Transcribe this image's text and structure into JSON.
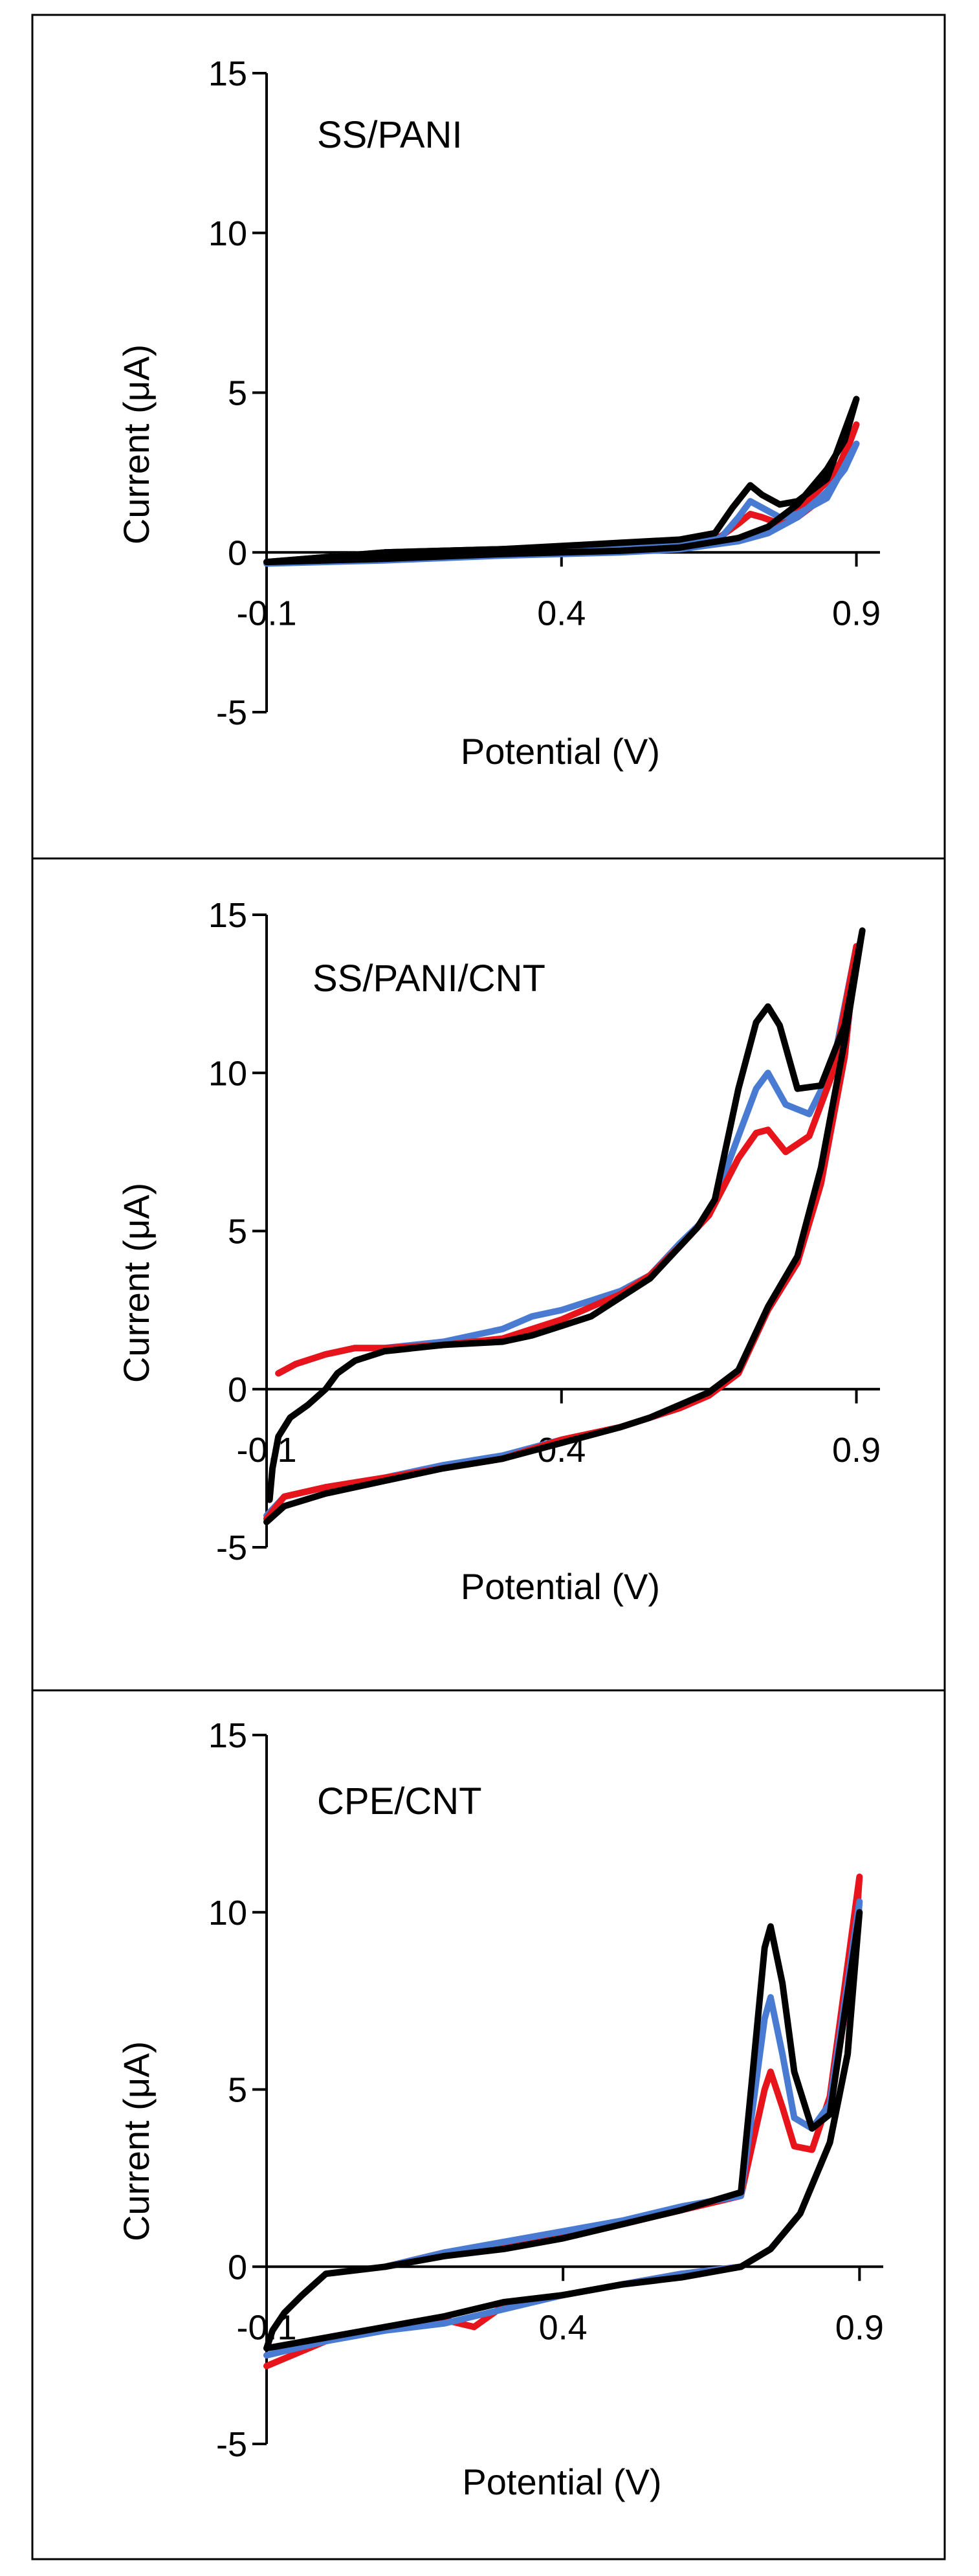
{
  "colors": {
    "blue": "#4a7bd2",
    "red": "#e8141b",
    "black": "#000000"
  },
  "chart_data": [
    {
      "type": "line",
      "title": "SS/PANI",
      "xlabel": "Potential (V)",
      "ylabel": "Current (μA)",
      "xlim": [
        -0.1,
        0.94
      ],
      "ylim": [
        -5,
        15
      ],
      "xticks": [
        -0.1,
        0.4,
        0.9
      ],
      "yticks": [
        -5,
        0,
        5,
        10,
        15
      ],
      "xtick_labels": [
        "-0.1",
        "0.4",
        "0.9"
      ],
      "ytick_labels": [
        "-5",
        "0",
        "5",
        "10",
        "15"
      ],
      "grid": false,
      "series": [
        {
          "color": "red",
          "x": [
            -0.1,
            0.1,
            0.3,
            0.5,
            0.6,
            0.67,
            0.7,
            0.72,
            0.74,
            0.77,
            0.8,
            0.85,
            0.9,
            0.88,
            0.85,
            0.8,
            0.75,
            0.7,
            0.6,
            0.5,
            0.3,
            0.1,
            -0.1
          ],
          "y": [
            -0.3,
            0.0,
            0.1,
            0.25,
            0.35,
            0.5,
            0.9,
            1.2,
            1.1,
            0.9,
            1.1,
            1.8,
            4.0,
            3.0,
            2.2,
            1.3,
            0.7,
            0.4,
            0.15,
            0.05,
            -0.05,
            -0.2,
            -0.3
          ]
        },
        {
          "color": "blue",
          "x": [
            -0.1,
            0.1,
            0.3,
            0.5,
            0.6,
            0.67,
            0.7,
            0.72,
            0.74,
            0.77,
            0.8,
            0.85,
            0.9,
            0.88,
            0.85,
            0.8,
            0.75,
            0.7,
            0.6,
            0.5,
            0.3,
            0.1,
            -0.1
          ],
          "y": [
            -0.3,
            0.0,
            0.1,
            0.2,
            0.3,
            0.45,
            1.1,
            1.6,
            1.4,
            1.1,
            1.2,
            1.7,
            3.4,
            2.6,
            1.9,
            1.1,
            0.6,
            0.35,
            0.1,
            0.0,
            -0.1,
            -0.25,
            -0.35
          ]
        },
        {
          "color": "black",
          "x": [
            -0.1,
            0.1,
            0.3,
            0.5,
            0.6,
            0.66,
            0.69,
            0.72,
            0.74,
            0.77,
            0.8,
            0.85,
            0.9,
            0.88,
            0.85,
            0.8,
            0.75,
            0.7,
            0.6,
            0.5,
            0.3,
            0.1,
            -0.1
          ],
          "y": [
            -0.3,
            0.0,
            0.1,
            0.3,
            0.4,
            0.6,
            1.4,
            2.1,
            1.8,
            1.5,
            1.6,
            2.3,
            4.8,
            3.5,
            2.6,
            1.5,
            0.8,
            0.45,
            0.15,
            0.05,
            -0.05,
            -0.2,
            -0.3
          ]
        }
      ]
    },
    {
      "type": "line",
      "title": "SS/PANI/CNT",
      "xlabel": "Potential (V)",
      "ylabel": "Current (μA)",
      "xlim": [
        -0.1,
        0.94
      ],
      "ylim": [
        -5,
        15
      ],
      "xticks": [
        -0.1,
        0.4,
        0.9
      ],
      "yticks": [
        -5,
        0,
        5,
        10,
        15
      ],
      "xtick_labels": [
        "-0.1",
        "0.4",
        "0.9"
      ],
      "ytick_labels": [
        "-5",
        "0",
        "5",
        "10",
        "15"
      ],
      "grid": false,
      "series": [
        {
          "color": "blue",
          "x": [
            -0.08,
            -0.05,
            0.0,
            0.05,
            0.1,
            0.2,
            0.3,
            0.35,
            0.4,
            0.45,
            0.5,
            0.55,
            0.6,
            0.65,
            0.7,
            0.73,
            0.75,
            0.78,
            0.82,
            0.86,
            0.9,
            0.88,
            0.84,
            0.8,
            0.75,
            0.7,
            0.65,
            0.6,
            0.55,
            0.5,
            0.4,
            0.3,
            0.2,
            0.1,
            0.0,
            -0.07,
            -0.1
          ],
          "y": [
            0.5,
            0.8,
            1.1,
            1.3,
            1.3,
            1.5,
            1.9,
            2.3,
            2.5,
            2.8,
            3.1,
            3.6,
            4.6,
            5.5,
            8.0,
            9.5,
            10.0,
            9.0,
            8.7,
            10.2,
            14.0,
            10.5,
            6.5,
            4.0,
            2.5,
            0.5,
            -0.2,
            -0.6,
            -0.9,
            -1.2,
            -1.6,
            -2.1,
            -2.4,
            -2.8,
            -3.1,
            -3.4,
            -4.0
          ]
        },
        {
          "color": "red",
          "x": [
            -0.08,
            -0.05,
            0.0,
            0.05,
            0.1,
            0.2,
            0.3,
            0.35,
            0.4,
            0.45,
            0.5,
            0.55,
            0.6,
            0.65,
            0.7,
            0.73,
            0.75,
            0.78,
            0.82,
            0.86,
            0.9,
            0.88,
            0.84,
            0.8,
            0.75,
            0.7,
            0.65,
            0.6,
            0.55,
            0.5,
            0.4,
            0.3,
            0.2,
            0.1,
            0.0,
            -0.07,
            -0.1
          ],
          "y": [
            0.5,
            0.8,
            1.1,
            1.3,
            1.3,
            1.4,
            1.6,
            1.9,
            2.2,
            2.6,
            3.0,
            3.6,
            4.5,
            5.5,
            7.3,
            8.1,
            8.2,
            7.5,
            8.0,
            10.0,
            14.0,
            10.5,
            6.5,
            4.0,
            2.5,
            0.5,
            -0.2,
            -0.6,
            -0.9,
            -1.2,
            -1.6,
            -2.2,
            -2.5,
            -2.8,
            -3.1,
            -3.4,
            -4.1
          ]
        },
        {
          "color": "black",
          "x": [
            -0.095,
            -0.09,
            -0.08,
            -0.06,
            -0.03,
            0.0,
            0.02,
            0.05,
            0.1,
            0.2,
            0.3,
            0.35,
            0.4,
            0.45,
            0.5,
            0.55,
            0.6,
            0.63,
            0.66,
            0.7,
            0.73,
            0.75,
            0.77,
            0.8,
            0.84,
            0.88,
            0.91,
            0.88,
            0.84,
            0.8,
            0.75,
            0.7,
            0.65,
            0.6,
            0.55,
            0.5,
            0.4,
            0.3,
            0.2,
            0.1,
            0.0,
            -0.07,
            -0.1
          ],
          "y": [
            -3.5,
            -2.5,
            -1.5,
            -0.9,
            -0.5,
            0.0,
            0.5,
            0.9,
            1.2,
            1.4,
            1.5,
            1.7,
            2.0,
            2.3,
            2.9,
            3.5,
            4.5,
            5.1,
            6.0,
            9.5,
            11.6,
            12.1,
            11.5,
            9.5,
            9.6,
            11.5,
            14.5,
            11.0,
            7.0,
            4.2,
            2.6,
            0.6,
            -0.1,
            -0.5,
            -0.9,
            -1.2,
            -1.7,
            -2.2,
            -2.5,
            -2.9,
            -3.3,
            -3.7,
            -4.2
          ]
        }
      ]
    },
    {
      "type": "line",
      "title": "CPE/CNT",
      "xlabel": "Potential (V)",
      "ylabel": "Current (μA)",
      "xlim": [
        -0.1,
        0.94
      ],
      "ylim": [
        -5,
        15
      ],
      "xticks": [
        -0.1,
        0.4,
        0.9
      ],
      "yticks": [
        -5,
        0,
        5,
        10,
        15
      ],
      "xtick_labels": [
        "-0.1",
        "0.4",
        "0.9"
      ],
      "ytick_labels": [
        "-5",
        "0",
        "5",
        "10",
        "15"
      ],
      "grid": false,
      "series": [
        {
          "color": "red",
          "x": [
            0.1,
            0.2,
            0.3,
            0.4,
            0.5,
            0.6,
            0.7,
            0.72,
            0.74,
            0.75,
            0.77,
            0.79,
            0.82,
            0.85,
            0.9,
            0.88,
            0.85,
            0.8,
            0.75,
            0.7,
            0.6,
            0.5,
            0.4,
            0.3,
            0.25,
            0.2,
            0.1,
            0.0,
            -0.1
          ],
          "y": [
            0.0,
            0.4,
            0.6,
            0.9,
            1.2,
            1.6,
            2.0,
            3.5,
            5.0,
            5.5,
            4.5,
            3.4,
            3.3,
            4.8,
            11.0,
            6.0,
            3.5,
            1.5,
            0.5,
            0.0,
            -0.2,
            -0.5,
            -0.8,
            -1.1,
            -1.7,
            -1.5,
            -1.7,
            -2.1,
            -2.8
          ]
        },
        {
          "color": "blue",
          "x": [
            0.1,
            0.2,
            0.3,
            0.4,
            0.5,
            0.6,
            0.7,
            0.72,
            0.74,
            0.75,
            0.77,
            0.79,
            0.82,
            0.85,
            0.9,
            0.88,
            0.85,
            0.8,
            0.75,
            0.7,
            0.6,
            0.5,
            0.4,
            0.3,
            0.2,
            0.1,
            0.0,
            -0.1
          ],
          "y": [
            0.0,
            0.4,
            0.7,
            1.0,
            1.3,
            1.7,
            2.0,
            4.5,
            7.0,
            7.6,
            6.0,
            4.2,
            3.9,
            4.6,
            10.3,
            6.0,
            3.5,
            1.5,
            0.5,
            0.0,
            -0.2,
            -0.5,
            -0.8,
            -1.2,
            -1.6,
            -1.8,
            -2.1,
            -2.5
          ]
        },
        {
          "color": "black",
          "x": [
            -0.1,
            -0.09,
            -0.07,
            -0.04,
            -0.02,
            0.0,
            0.1,
            0.2,
            0.3,
            0.4,
            0.5,
            0.6,
            0.7,
            0.72,
            0.74,
            0.75,
            0.77,
            0.79,
            0.82,
            0.85,
            0.9,
            0.88,
            0.85,
            0.8,
            0.75,
            0.7,
            0.6,
            0.5,
            0.4,
            0.3,
            0.2,
            0.1,
            0.0,
            -0.1
          ],
          "y": [
            -2.3,
            -1.8,
            -1.3,
            -0.8,
            -0.5,
            -0.2,
            0.0,
            0.3,
            0.5,
            0.8,
            1.2,
            1.6,
            2.1,
            5.5,
            9.0,
            9.6,
            8.0,
            5.5,
            3.9,
            4.3,
            10.0,
            6.0,
            3.5,
            1.5,
            0.5,
            0.0,
            -0.3,
            -0.5,
            -0.8,
            -1.0,
            -1.4,
            -1.7,
            -2.0,
            -2.3
          ]
        }
      ]
    }
  ]
}
